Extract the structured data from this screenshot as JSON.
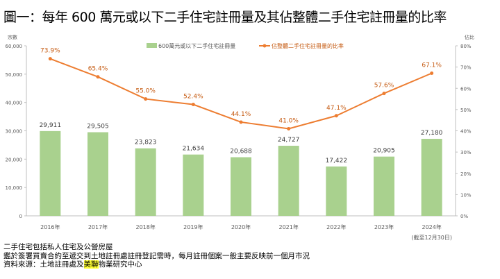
{
  "title": "圖一：每年 600 萬元或以下二手住宅註冊量及其佔整體二手住宅註冊量的比率",
  "chart_data": {
    "type": "bar+line",
    "categories": [
      "2016年",
      "2017年",
      "2018年",
      "2019年",
      "2020年",
      "2021年",
      "2022年",
      "2023年",
      "2024年"
    ],
    "category_note": "(截至12月30日)",
    "series": [
      {
        "name": "600萬元或以下二手住宅註冊量",
        "type": "bar",
        "axis": "left",
        "color": "#A9D18E",
        "values": [
          29911,
          29505,
          23823,
          21634,
          20688,
          24727,
          17422,
          20905,
          27180
        ],
        "labels": [
          "29,911",
          "29,505",
          "23,823",
          "21,634",
          "20,688",
          "24,727",
          "17,422",
          "20,905",
          "27,180"
        ]
      },
      {
        "name": "佔整體二手住宅註冊量的比率",
        "type": "line",
        "axis": "right",
        "color": "#ED7D31",
        "values": [
          73.9,
          65.4,
          55.0,
          52.4,
          44.1,
          41.0,
          47.1,
          57.6,
          67.1
        ],
        "labels": [
          "73.9%",
          "65.4%",
          "55.0%",
          "52.4%",
          "44.1%",
          "41.0%",
          "47.1%",
          "57.6%",
          "67.1%"
        ]
      }
    ],
    "ylabel": "宗數",
    "ylabel_right": "佔比",
    "ylim": [
      0,
      60000
    ],
    "ylim_right": [
      0,
      80
    ],
    "yticks": [
      "0",
      "10,000",
      "20,000",
      "30,000",
      "40,000",
      "50,000",
      "60,000"
    ],
    "yticks_right": [
      "0%",
      "10%",
      "20%",
      "30%",
      "40%",
      "50%",
      "60%",
      "70%",
      "80%"
    ],
    "legend": "top-center",
    "grid": false
  },
  "notes": {
    "line1": "二手住宅包括私人住宅及公營房屋",
    "line2": "鑑於簽署買賣合約至遞交到土地註冊處註冊登記需時，每月註冊個案一般主要反映前一個月市況",
    "line3_pre": "資料來源：土地註冊處及",
    "line3_hl": "美聯",
    "line3_post": "物業研究中心"
  }
}
